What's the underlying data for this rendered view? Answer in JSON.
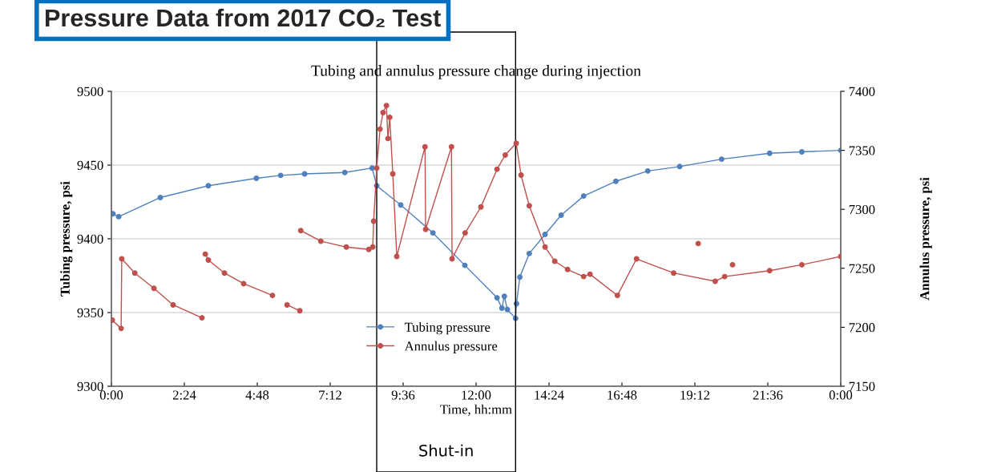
{
  "chart_data": {
    "type": "line",
    "title": "Tubing and annulus pressure change during injection",
    "xlabel": "Time, hh:mm",
    "ylabel": "Tubing pressure, psi",
    "y2label": "Annulus pressure, psi",
    "annotations": [
      "Pressure Data from 2017 CO₂ Test",
      "Shut-in"
    ],
    "ref_lines": [
      {
        "axis": "x",
        "value": 8.73,
        "color": "#000000"
      },
      {
        "axis": "x",
        "value": 13.3,
        "color": "#000000"
      }
    ],
    "xlim": [
      0,
      24
    ],
    "xticks": [
      {
        "value": 0,
        "label": "0:00"
      },
      {
        "value": 2.4,
        "label": "2:24"
      },
      {
        "value": 4.8,
        "label": "4:48"
      },
      {
        "value": 7.2,
        "label": "7:12"
      },
      {
        "value": 9.6,
        "label": "9:36"
      },
      {
        "value": 12,
        "label": "12:00"
      },
      {
        "value": 14.4,
        "label": "14:24"
      },
      {
        "value": 16.8,
        "label": "16:48"
      },
      {
        "value": 19.2,
        "label": "19:12"
      },
      {
        "value": 21.6,
        "label": "21:36"
      },
      {
        "value": 24,
        "label": "0:00"
      }
    ],
    "ylim": [
      9300,
      9500
    ],
    "yticks": [
      9300,
      9350,
      9400,
      9450,
      9500
    ],
    "y2lim": [
      7150,
      7400
    ],
    "y2ticks": [
      7150,
      7200,
      7250,
      7300,
      7350,
      7400
    ],
    "grid": "y",
    "legend": "bottom",
    "marker": "circle",
    "line_style": "solid",
    "series": [
      {
        "name": "Tubing pressure",
        "color": "#4f81bd",
        "x": [
          0.05,
          0.24,
          1.61,
          3.19,
          4.77,
          5.57,
          6.36,
          7.68,
          8.58,
          8.73,
          9.52,
          10.58,
          11.63,
          12.69,
          12.85,
          12.93,
          13.03,
          13.3,
          13.33,
          13.44,
          13.75,
          14.27,
          14.8,
          15.54,
          16.6,
          17.65,
          18.7,
          20.08,
          21.66,
          22.72,
          24.0
        ],
        "values": [
          9417,
          9415,
          9428,
          9436,
          9441,
          9443,
          9444,
          9445,
          9448,
          9436,
          9423,
          9404,
          9382,
          9360,
          9353,
          9361,
          9352,
          9346,
          9356,
          9374,
          9390,
          9403,
          9416,
          9429,
          9439,
          9446,
          9449,
          9454,
          9458,
          9459,
          9460
        ]
      },
      {
        "name": "Annulus pressure",
        "color": "#c0504d",
        "axis": "y2",
        "x": [
          0.03,
          0.32,
          0.34,
          0.77,
          1.4,
          2.03,
          2.98,
          3.03,
          3.09,
          3.19,
          3.72,
          4.35,
          5.3,
          5.5,
          5.78,
          6.2,
          6.22,
          6.23,
          6.89,
          7.73,
          8.47,
          8.6,
          8.63,
          8.73,
          8.84,
          8.94,
          9.05,
          9.1,
          9.16,
          9.26,
          9.39,
          10.32,
          10.34,
          11.19,
          11.21,
          11.64,
          12.16,
          12.69,
          12.96,
          13.32,
          13.48,
          13.75,
          14.27,
          14.59,
          15.01,
          15.54,
          15.75,
          16.65,
          17.28,
          18.5,
          19.87,
          20.18,
          21.66,
          22.72,
          24.0
        ],
        "values": [
          7206,
          7199,
          7258,
          7246,
          7233,
          7219,
          7208,
          null,
          7262,
          7257,
          7246,
          7237,
          7227,
          null,
          7219,
          7214,
          null,
          7282,
          7273,
          7268,
          7266,
          7268,
          7290,
          7335,
          7368,
          7382,
          7388,
          7360,
          7378,
          7330,
          7260,
          7353,
          7283,
          7353,
          7258,
          7280,
          7302,
          7334,
          7346,
          7356,
          7329,
          7303,
          7268,
          7256,
          7249,
          7243,
          7245,
          7227,
          7258,
          7246,
          7239,
          7243,
          7248,
          7253,
          7260
        ]
      },
      {
        "type": "scatter",
        "color": "#c0504d",
        "axis": "y2",
        "x": [
          19.31,
          20.44
        ],
        "values": [
          7271,
          7253
        ]
      }
    ]
  }
}
